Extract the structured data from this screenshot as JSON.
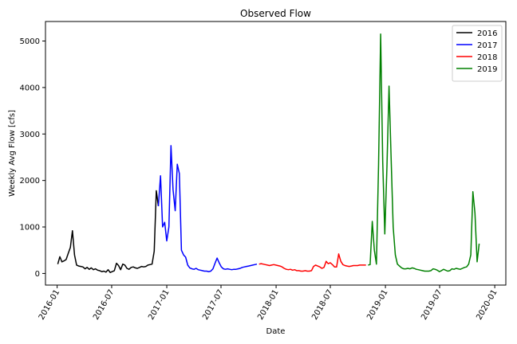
{
  "chart_data": {
    "type": "line",
    "title": "Observed Flow",
    "xlabel": "Date",
    "ylabel": "Weekly Avg Flow [cfs]",
    "xlim": [
      "2015-11-23",
      "2020-02-07"
    ],
    "ylim": [
      -250,
      5420
    ],
    "grid": false,
    "legend_position": "top-right",
    "x_ticks": [
      "2016-01",
      "2016-07",
      "2017-01",
      "2017-07",
      "2018-01",
      "2018-07",
      "2019-01",
      "2019-07",
      "2020-01"
    ],
    "y_ticks": [
      0,
      1000,
      2000,
      3000,
      4000,
      5000
    ],
    "series": [
      {
        "name": "2016",
        "color": "#000000",
        "points": [
          [
            "2016-01-03",
            200
          ],
          [
            "2016-01-10",
            360
          ],
          [
            "2016-01-17",
            250
          ],
          [
            "2016-01-24",
            270
          ],
          [
            "2016-01-31",
            300
          ],
          [
            "2016-02-07",
            430
          ],
          [
            "2016-02-14",
            560
          ],
          [
            "2016-02-21",
            920
          ],
          [
            "2016-02-28",
            400
          ],
          [
            "2016-03-06",
            180
          ],
          [
            "2016-03-13",
            160
          ],
          [
            "2016-03-20",
            150
          ],
          [
            "2016-03-27",
            140
          ],
          [
            "2016-04-03",
            100
          ],
          [
            "2016-04-10",
            130
          ],
          [
            "2016-04-17",
            90
          ],
          [
            "2016-04-24",
            120
          ],
          [
            "2016-05-01",
            80
          ],
          [
            "2016-05-08",
            100
          ],
          [
            "2016-05-15",
            70
          ],
          [
            "2016-05-22",
            60
          ],
          [
            "2016-05-29",
            40
          ],
          [
            "2016-06-05",
            50
          ],
          [
            "2016-06-12",
            30
          ],
          [
            "2016-06-19",
            80
          ],
          [
            "2016-06-26",
            20
          ],
          [
            "2016-07-03",
            40
          ],
          [
            "2016-07-10",
            60
          ],
          [
            "2016-07-17",
            220
          ],
          [
            "2016-07-24",
            170
          ],
          [
            "2016-07-31",
            80
          ],
          [
            "2016-08-07",
            200
          ],
          [
            "2016-08-14",
            180
          ],
          [
            "2016-08-21",
            110
          ],
          [
            "2016-08-28",
            90
          ],
          [
            "2016-09-04",
            130
          ],
          [
            "2016-09-11",
            140
          ],
          [
            "2016-09-18",
            120
          ],
          [
            "2016-09-25",
            110
          ],
          [
            "2016-10-02",
            130
          ],
          [
            "2016-10-09",
            150
          ],
          [
            "2016-10-16",
            140
          ],
          [
            "2016-10-23",
            150
          ],
          [
            "2016-10-30",
            180
          ],
          [
            "2016-11-06",
            190
          ],
          [
            "2016-11-13",
            200
          ],
          [
            "2016-11-20",
            480
          ],
          [
            "2016-11-27",
            1780
          ],
          [
            "2016-12-04",
            1450
          ]
        ]
      },
      {
        "name": "2017",
        "color": "#0000ff",
        "points": [
          [
            "2016-12-04",
            1450
          ],
          [
            "2016-12-11",
            2100
          ],
          [
            "2016-12-18",
            1000
          ],
          [
            "2016-12-25",
            1100
          ],
          [
            "2017-01-01",
            700
          ],
          [
            "2017-01-08",
            1000
          ],
          [
            "2017-01-15",
            2750
          ],
          [
            "2017-01-22",
            1800
          ],
          [
            "2017-01-29",
            1350
          ],
          [
            "2017-02-05",
            2350
          ],
          [
            "2017-02-12",
            2150
          ],
          [
            "2017-02-19",
            500
          ],
          [
            "2017-02-26",
            400
          ],
          [
            "2017-03-05",
            350
          ],
          [
            "2017-03-12",
            180
          ],
          [
            "2017-03-19",
            120
          ],
          [
            "2017-03-26",
            100
          ],
          [
            "2017-04-02",
            90
          ],
          [
            "2017-04-09",
            110
          ],
          [
            "2017-04-16",
            80
          ],
          [
            "2017-04-23",
            70
          ],
          [
            "2017-04-30",
            60
          ],
          [
            "2017-05-07",
            50
          ],
          [
            "2017-05-14",
            50
          ],
          [
            "2017-05-21",
            40
          ],
          [
            "2017-05-28",
            50
          ],
          [
            "2017-06-04",
            100
          ],
          [
            "2017-06-11",
            220
          ],
          [
            "2017-06-18",
            330
          ],
          [
            "2017-06-25",
            230
          ],
          [
            "2017-07-02",
            140
          ],
          [
            "2017-07-09",
            100
          ],
          [
            "2017-07-16",
            90
          ],
          [
            "2017-07-23",
            100
          ],
          [
            "2017-07-30",
            90
          ],
          [
            "2017-08-06",
            80
          ],
          [
            "2017-08-13",
            90
          ],
          [
            "2017-08-20",
            90
          ],
          [
            "2017-08-27",
            100
          ],
          [
            "2017-09-03",
            110
          ],
          [
            "2017-09-10",
            130
          ],
          [
            "2017-09-17",
            140
          ],
          [
            "2017-09-24",
            150
          ],
          [
            "2017-10-01",
            160
          ],
          [
            "2017-10-08",
            170
          ],
          [
            "2017-10-15",
            180
          ],
          [
            "2017-10-22",
            190
          ],
          [
            "2017-10-29",
            200
          ]
        ]
      },
      {
        "name": "2018",
        "color": "#ff0000",
        "points": [
          [
            "2017-11-05",
            200
          ],
          [
            "2017-11-12",
            210
          ],
          [
            "2017-11-19",
            200
          ],
          [
            "2017-11-26",
            190
          ],
          [
            "2017-12-03",
            180
          ],
          [
            "2017-12-10",
            170
          ],
          [
            "2017-12-17",
            180
          ],
          [
            "2017-12-24",
            190
          ],
          [
            "2017-12-31",
            180
          ],
          [
            "2018-01-07",
            170
          ],
          [
            "2018-01-14",
            160
          ],
          [
            "2018-01-21",
            140
          ],
          [
            "2018-01-28",
            110
          ],
          [
            "2018-02-04",
            90
          ],
          [
            "2018-02-11",
            80
          ],
          [
            "2018-02-18",
            90
          ],
          [
            "2018-02-25",
            70
          ],
          [
            "2018-03-04",
            80
          ],
          [
            "2018-03-11",
            60
          ],
          [
            "2018-03-18",
            60
          ],
          [
            "2018-03-25",
            50
          ],
          [
            "2018-04-01",
            50
          ],
          [
            "2018-04-08",
            60
          ],
          [
            "2018-04-15",
            50
          ],
          [
            "2018-04-22",
            50
          ],
          [
            "2018-04-29",
            60
          ],
          [
            "2018-05-06",
            150
          ],
          [
            "2018-05-13",
            180
          ],
          [
            "2018-05-20",
            160
          ],
          [
            "2018-05-27",
            140
          ],
          [
            "2018-06-03",
            110
          ],
          [
            "2018-06-10",
            130
          ],
          [
            "2018-06-17",
            260
          ],
          [
            "2018-06-24",
            210
          ],
          [
            "2018-07-01",
            230
          ],
          [
            "2018-07-08",
            190
          ],
          [
            "2018-07-15",
            140
          ],
          [
            "2018-07-22",
            140
          ],
          [
            "2018-07-29",
            420
          ],
          [
            "2018-08-05",
            260
          ],
          [
            "2018-08-12",
            190
          ],
          [
            "2018-08-19",
            170
          ],
          [
            "2018-08-26",
            160
          ],
          [
            "2018-09-02",
            150
          ],
          [
            "2018-09-09",
            160
          ],
          [
            "2018-09-16",
            170
          ],
          [
            "2018-09-23",
            170
          ],
          [
            "2018-09-30",
            170
          ],
          [
            "2018-10-07",
            180
          ],
          [
            "2018-10-14",
            180
          ],
          [
            "2018-10-21",
            180
          ],
          [
            "2018-10-28",
            180
          ]
        ]
      },
      {
        "name": "2019",
        "color": "#008000",
        "points": [
          [
            "2018-11-04",
            180
          ],
          [
            "2018-11-11",
            190
          ],
          [
            "2018-11-18",
            1120
          ],
          [
            "2018-11-25",
            500
          ],
          [
            "2018-12-02",
            200
          ],
          [
            "2018-12-09",
            2350
          ],
          [
            "2018-12-16",
            5150
          ],
          [
            "2018-12-23",
            2400
          ],
          [
            "2018-12-30",
            850
          ],
          [
            "2019-01-06",
            2300
          ],
          [
            "2019-01-13",
            4030
          ],
          [
            "2019-01-20",
            2500
          ],
          [
            "2019-01-27",
            1000
          ],
          [
            "2019-02-03",
            400
          ],
          [
            "2019-02-10",
            200
          ],
          [
            "2019-02-17",
            160
          ],
          [
            "2019-02-24",
            120
          ],
          [
            "2019-03-03",
            100
          ],
          [
            "2019-03-10",
            100
          ],
          [
            "2019-03-17",
            110
          ],
          [
            "2019-03-24",
            100
          ],
          [
            "2019-03-31",
            120
          ],
          [
            "2019-04-07",
            110
          ],
          [
            "2019-04-14",
            90
          ],
          [
            "2019-04-21",
            80
          ],
          [
            "2019-04-28",
            70
          ],
          [
            "2019-05-05",
            60
          ],
          [
            "2019-05-12",
            50
          ],
          [
            "2019-05-19",
            50
          ],
          [
            "2019-05-26",
            50
          ],
          [
            "2019-06-02",
            60
          ],
          [
            "2019-06-09",
            100
          ],
          [
            "2019-06-16",
            90
          ],
          [
            "2019-06-23",
            70
          ],
          [
            "2019-06-30",
            40
          ],
          [
            "2019-07-07",
            60
          ],
          [
            "2019-07-14",
            90
          ],
          [
            "2019-07-21",
            70
          ],
          [
            "2019-07-28",
            50
          ],
          [
            "2019-08-04",
            60
          ],
          [
            "2019-08-11",
            100
          ],
          [
            "2019-08-18",
            90
          ],
          [
            "2019-08-25",
            110
          ],
          [
            "2019-09-01",
            100
          ],
          [
            "2019-09-08",
            90
          ],
          [
            "2019-09-15",
            110
          ],
          [
            "2019-09-22",
            130
          ],
          [
            "2019-09-29",
            140
          ],
          [
            "2019-10-06",
            200
          ],
          [
            "2019-10-13",
            400
          ],
          [
            "2019-10-20",
            1760
          ],
          [
            "2019-10-27",
            1300
          ],
          [
            "2019-11-03",
            250
          ],
          [
            "2019-11-10",
            640
          ]
        ]
      }
    ]
  }
}
